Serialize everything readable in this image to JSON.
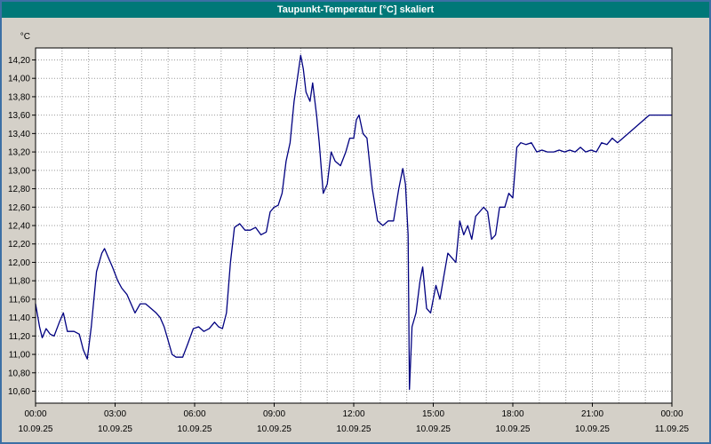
{
  "window": {
    "title": "Taupunkt-Temperatur [°C] skaliert"
  },
  "colors": {
    "titlebar": "#007878",
    "border": "#3c6fa5",
    "background": "#d4d0c8",
    "grid": "#999999",
    "line": "#000080"
  },
  "chart_data": {
    "type": "line",
    "title": "Taupunkt-Temperatur [°C] skaliert",
    "unit_label": "°C",
    "series_color": "#000080",
    "grid": true,
    "ylim": [
      10.47,
      14.33
    ],
    "xlim_hours": [
      0,
      24
    ],
    "yticks": [
      14.2,
      14.0,
      13.8,
      13.6,
      13.4,
      13.2,
      13.0,
      12.8,
      12.6,
      12.4,
      12.2,
      12.0,
      11.8,
      11.6,
      11.4,
      11.2,
      11.0,
      10.8,
      10.6
    ],
    "ytick_labels": [
      "14,20",
      "14,00",
      "13,80",
      "13,60",
      "13,40",
      "13,20",
      "13,00",
      "12,80",
      "12,60",
      "12,40",
      "12,20",
      "12,00",
      "11,80",
      "11,60",
      "11,40",
      "11,20",
      "11,00",
      "10,80",
      "10,60"
    ],
    "xticks": [
      {
        "hour": 0,
        "time": "00:00",
        "date": "10.09.25"
      },
      {
        "hour": 3,
        "time": "03:00",
        "date": "10.09.25"
      },
      {
        "hour": 6,
        "time": "06:00",
        "date": "10.09.25"
      },
      {
        "hour": 9,
        "time": "09:00",
        "date": "10.09.25"
      },
      {
        "hour": 12,
        "time": "12:00",
        "date": "10.09.25"
      },
      {
        "hour": 15,
        "time": "15:00",
        "date": "10.09.25"
      },
      {
        "hour": 18,
        "time": "18:00",
        "date": "10.09.25"
      },
      {
        "hour": 21,
        "time": "21:00",
        "date": "10.09.25"
      },
      {
        "hour": 24,
        "time": "00:00",
        "date": "11.09.25"
      }
    ],
    "points": [
      [
        0,
        11.55
      ],
      [
        0.15,
        11.3
      ],
      [
        0.25,
        11.18
      ],
      [
        0.4,
        11.28
      ],
      [
        0.55,
        11.22
      ],
      [
        0.7,
        11.2
      ],
      [
        0.9,
        11.35
      ],
      [
        1.05,
        11.45
      ],
      [
        1.2,
        11.25
      ],
      [
        1.45,
        11.25
      ],
      [
        1.65,
        11.22
      ],
      [
        1.8,
        11.05
      ],
      [
        1.95,
        10.95
      ],
      [
        2.1,
        11.3
      ],
      [
        2.3,
        11.9
      ],
      [
        2.5,
        12.1
      ],
      [
        2.6,
        12.15
      ],
      [
        2.75,
        12.05
      ],
      [
        2.9,
        11.95
      ],
      [
        3.1,
        11.8
      ],
      [
        3.25,
        11.72
      ],
      [
        3.45,
        11.65
      ],
      [
        3.6,
        11.55
      ],
      [
        3.75,
        11.45
      ],
      [
        3.95,
        11.55
      ],
      [
        4.15,
        11.55
      ],
      [
        4.35,
        11.5
      ],
      [
        4.55,
        11.45
      ],
      [
        4.7,
        11.4
      ],
      [
        4.85,
        11.3
      ],
      [
        5.0,
        11.15
      ],
      [
        5.15,
        11.0
      ],
      [
        5.3,
        10.97
      ],
      [
        5.55,
        10.97
      ],
      [
        5.75,
        11.12
      ],
      [
        5.95,
        11.28
      ],
      [
        6.15,
        11.3
      ],
      [
        6.35,
        11.25
      ],
      [
        6.55,
        11.28
      ],
      [
        6.75,
        11.35
      ],
      [
        6.9,
        11.3
      ],
      [
        7.05,
        11.28
      ],
      [
        7.2,
        11.45
      ],
      [
        7.35,
        12.0
      ],
      [
        7.5,
        12.38
      ],
      [
        7.7,
        12.42
      ],
      [
        7.9,
        12.35
      ],
      [
        8.1,
        12.35
      ],
      [
        8.3,
        12.38
      ],
      [
        8.5,
        12.3
      ],
      [
        8.7,
        12.33
      ],
      [
        8.85,
        12.55
      ],
      [
        9.0,
        12.6
      ],
      [
        9.15,
        12.62
      ],
      [
        9.3,
        12.75
      ],
      [
        9.45,
        13.1
      ],
      [
        9.6,
        13.3
      ],
      [
        9.75,
        13.75
      ],
      [
        9.9,
        14.05
      ],
      [
        10.0,
        14.25
      ],
      [
        10.1,
        14.1
      ],
      [
        10.2,
        13.85
      ],
      [
        10.35,
        13.75
      ],
      [
        10.45,
        13.95
      ],
      [
        10.6,
        13.6
      ],
      [
        10.7,
        13.3
      ],
      [
        10.85,
        12.75
      ],
      [
        11.0,
        12.85
      ],
      [
        11.15,
        13.2
      ],
      [
        11.3,
        13.1
      ],
      [
        11.5,
        13.05
      ],
      [
        11.7,
        13.2
      ],
      [
        11.85,
        13.35
      ],
      [
        12.0,
        13.35
      ],
      [
        12.1,
        13.55
      ],
      [
        12.2,
        13.6
      ],
      [
        12.35,
        13.4
      ],
      [
        12.5,
        13.35
      ],
      [
        12.7,
        12.8
      ],
      [
        12.9,
        12.45
      ],
      [
        13.1,
        12.4
      ],
      [
        13.3,
        12.45
      ],
      [
        13.5,
        12.45
      ],
      [
        13.7,
        12.8
      ],
      [
        13.85,
        13.02
      ],
      [
        13.95,
        12.85
      ],
      [
        14.05,
        12.3
      ],
      [
        14.1,
        10.62
      ],
      [
        14.2,
        11.3
      ],
      [
        14.35,
        11.45
      ],
      [
        14.5,
        11.8
      ],
      [
        14.6,
        11.95
      ],
      [
        14.75,
        11.5
      ],
      [
        14.9,
        11.45
      ],
      [
        15.0,
        11.6
      ],
      [
        15.1,
        11.75
      ],
      [
        15.25,
        11.6
      ],
      [
        15.4,
        11.85
      ],
      [
        15.55,
        12.1
      ],
      [
        15.7,
        12.05
      ],
      [
        15.85,
        12.0
      ],
      [
        16.0,
        12.45
      ],
      [
        16.15,
        12.3
      ],
      [
        16.3,
        12.4
      ],
      [
        16.45,
        12.25
      ],
      [
        16.6,
        12.5
      ],
      [
        16.75,
        12.55
      ],
      [
        16.9,
        12.6
      ],
      [
        17.05,
        12.55
      ],
      [
        17.2,
        12.25
      ],
      [
        17.35,
        12.3
      ],
      [
        17.5,
        12.6
      ],
      [
        17.7,
        12.6
      ],
      [
        17.85,
        12.75
      ],
      [
        18.0,
        12.7
      ],
      [
        18.15,
        13.25
      ],
      [
        18.3,
        13.3
      ],
      [
        18.5,
        13.28
      ],
      [
        18.7,
        13.3
      ],
      [
        18.9,
        13.2
      ],
      [
        19.1,
        13.22
      ],
      [
        19.3,
        13.2
      ],
      [
        19.55,
        13.2
      ],
      [
        19.75,
        13.22
      ],
      [
        19.95,
        13.2
      ],
      [
        20.15,
        13.22
      ],
      [
        20.35,
        13.2
      ],
      [
        20.55,
        13.25
      ],
      [
        20.75,
        13.2
      ],
      [
        20.95,
        13.22
      ],
      [
        21.15,
        13.2
      ],
      [
        21.35,
        13.3
      ],
      [
        21.55,
        13.28
      ],
      [
        21.75,
        13.35
      ],
      [
        21.95,
        13.3
      ],
      [
        22.15,
        13.35
      ],
      [
        22.35,
        13.4
      ],
      [
        22.55,
        13.45
      ],
      [
        22.75,
        13.5
      ],
      [
        22.95,
        13.55
      ],
      [
        23.15,
        13.6
      ],
      [
        23.5,
        13.6
      ],
      [
        24,
        13.6
      ]
    ]
  }
}
